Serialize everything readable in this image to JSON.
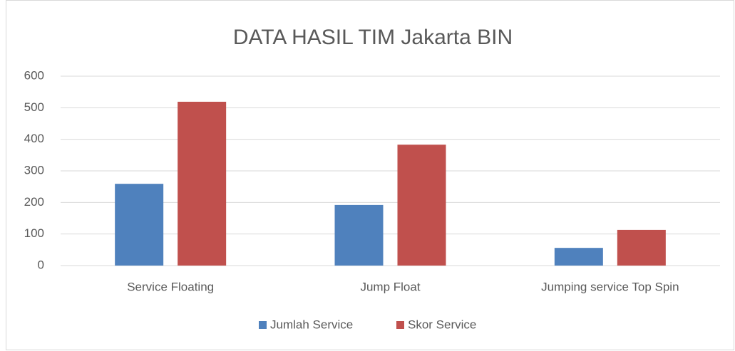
{
  "chart_data": {
    "type": "bar",
    "title": "DATA HASIL TIM Jakarta BIN",
    "categories": [
      "Service Floating",
      "Jump Float",
      "Jumping service Top Spin"
    ],
    "series": [
      {
        "name": "Jumlah Service",
        "color": "#4f81bd",
        "values": [
          259,
          192,
          56
        ]
      },
      {
        "name": "Skor Service",
        "color": "#c0504d",
        "values": [
          519,
          383,
          113
        ]
      }
    ],
    "ylim": [
      0,
      600
    ],
    "yticks": [
      0,
      100,
      200,
      300,
      400,
      500,
      600
    ],
    "grid": true,
    "legend": "bottom"
  }
}
